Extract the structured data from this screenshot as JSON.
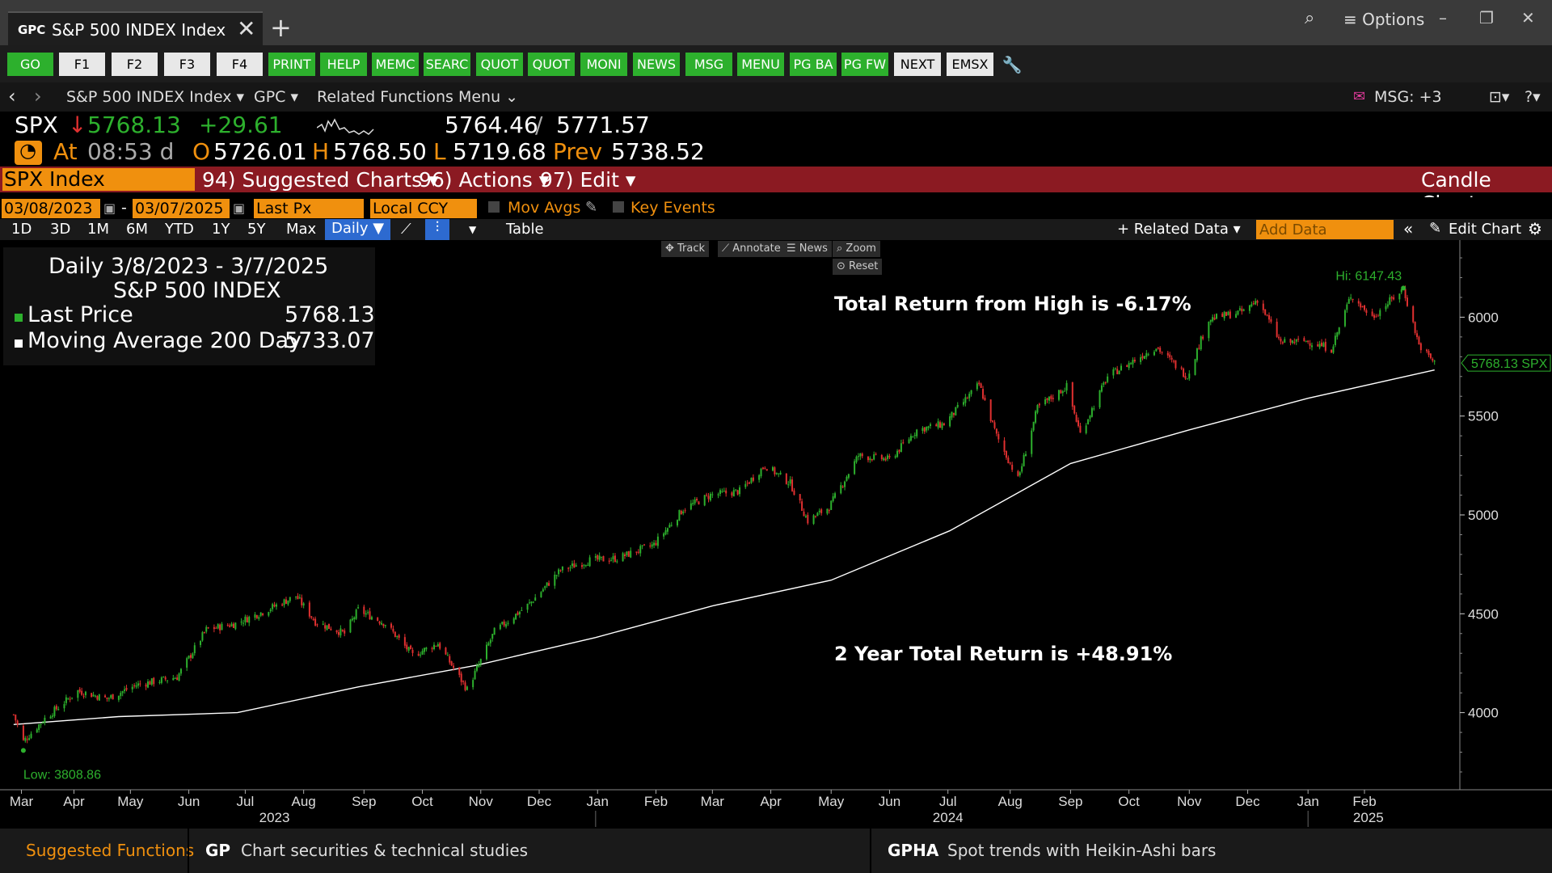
{
  "window": {
    "tab_code": "GPC",
    "tab_title": "S&P 500 INDEX Index",
    "options": "≡ Options"
  },
  "function_keys": [
    {
      "label": "GO",
      "style": "g"
    },
    {
      "label": "F1",
      "style": "w"
    },
    {
      "label": "F2",
      "style": "w"
    },
    {
      "label": "F3",
      "style": "w"
    },
    {
      "label": "F4",
      "style": "w"
    },
    {
      "label": "PRINT",
      "style": "g"
    },
    {
      "label": "HELP",
      "style": "g"
    },
    {
      "label": "MEMC",
      "style": "g"
    },
    {
      "label": "SEARC",
      "style": "g"
    },
    {
      "label": "QUOT",
      "style": "g"
    },
    {
      "label": "QUOT",
      "style": "g"
    },
    {
      "label": "MONI",
      "style": "g"
    },
    {
      "label": "NEWS",
      "style": "g"
    },
    {
      "label": "MSG",
      "style": "g"
    },
    {
      "label": "MENU",
      "style": "g"
    },
    {
      "label": "PG BA",
      "style": "g"
    },
    {
      "label": "PG FW",
      "style": "g"
    },
    {
      "label": "NEXT",
      "style": "w"
    },
    {
      "label": "EMSX",
      "style": "w"
    }
  ],
  "nav": {
    "security": "S&P 500 INDEX Index ▾",
    "function": "GPC ▾",
    "related": "Related Functions Menu ⌄",
    "msg": "MSG: +3"
  },
  "quote": {
    "ticker": "SPX",
    "last": "5768.13",
    "change": "+29.61",
    "bid": "5764.46",
    "ask": "5771.57",
    "at_label": "At",
    "time": "08:53 d",
    "open_label": "O",
    "open": "5726.01",
    "high_label": "H",
    "high": "5768.50",
    "low_label": "L",
    "low": "5719.68",
    "prev_label": "Prev",
    "prev": "5738.52"
  },
  "toolbar": {
    "security_box": "SPX Index",
    "suggested": "94) Suggested Charts ▾",
    "actions": "96) Actions ▾",
    "edit": "97) Edit ▾",
    "chart_type": "Candle Chart"
  },
  "controls": {
    "start_date": "03/08/2023",
    "end_date": "03/07/2025",
    "field": "Last Px",
    "currency": "Local CCY",
    "mov_avgs": "Mov Avgs",
    "key_events": "Key Events",
    "periods": [
      "1D",
      "3D",
      "1M",
      "6M",
      "YTD",
      "1Y",
      "5Y",
      "Max"
    ],
    "frequency": "Daily ▼",
    "table": "Table",
    "related_data": "+ Related Data ▾",
    "add_data_placeholder": "Add Data",
    "edit_chart": "Edit Chart"
  },
  "chart_tools": [
    "✥ Track",
    "⟋ Annotate",
    "☰ News",
    "⌕ Zoom",
    "⊙ Reset"
  ],
  "legend": {
    "period": "Daily 3/8/2023 - 3/7/2025",
    "name": "S&P 500 INDEX",
    "last_label": "Last Price",
    "last_value": "5768.13",
    "ma_label": "Moving Average 200 Day",
    "ma_value": "5733.07"
  },
  "annotations": {
    "from_high": "Total Return from High is -6.17%",
    "two_year": "2 Year Total Return is +48.91%"
  },
  "chart_data": {
    "type": "line",
    "series": [
      {
        "name": "Last Price",
        "color": "#2db02d",
        "x": [
          "2023-03-08",
          "2023-03-13",
          "2023-03-24",
          "2023-04-10",
          "2023-04-25",
          "2023-05-10",
          "2023-05-31",
          "2023-06-15",
          "2023-06-30",
          "2023-07-14",
          "2023-07-31",
          "2023-08-10",
          "2023-08-25",
          "2023-09-01",
          "2023-09-15",
          "2023-09-29",
          "2023-10-12",
          "2023-10-27",
          "2023-11-10",
          "2023-11-28",
          "2023-12-14",
          "2023-12-29",
          "2024-01-12",
          "2024-01-31",
          "2024-02-15",
          "2024-02-29",
          "2024-03-15",
          "2024-03-28",
          "2024-04-10",
          "2024-04-19",
          "2024-04-30",
          "2024-05-15",
          "2024-05-31",
          "2024-06-14",
          "2024-06-28",
          "2024-07-16",
          "2024-07-25",
          "2024-08-05",
          "2024-08-15",
          "2024-08-30",
          "2024-09-06",
          "2024-09-20",
          "2024-09-30",
          "2024-10-15",
          "2024-10-31",
          "2024-11-11",
          "2024-11-29",
          "2024-12-06",
          "2024-12-18",
          "2024-12-31",
          "2025-01-13",
          "2025-01-23",
          "2025-02-03",
          "2025-02-19",
          "2025-02-27",
          "2025-03-07"
        ],
        "y": [
          3990,
          3855,
          3970,
          4110,
          4070,
          4140,
          4180,
          4420,
          4450,
          4510,
          4590,
          4460,
          4400,
          4520,
          4450,
          4290,
          4350,
          4117,
          4410,
          4550,
          4720,
          4770,
          4780,
          4850,
          5030,
          5100,
          5120,
          5250,
          5160,
          4970,
          5040,
          5300,
          5280,
          5430,
          5460,
          5660,
          5400,
          5180,
          5540,
          5650,
          5410,
          5700,
          5760,
          5850,
          5700,
          5990,
          6030,
          6090,
          5870,
          5880,
          5840,
          6110,
          6000,
          6144,
          5860,
          5768
        ]
      },
      {
        "name": "Moving Average 200 Day",
        "color": "#ffffff",
        "x": [
          "2023-03-08",
          "2023-05-01",
          "2023-07-01",
          "2023-09-01",
          "2023-11-01",
          "2024-01-01",
          "2024-03-01",
          "2024-05-01",
          "2024-07-01",
          "2024-09-01",
          "2024-11-01",
          "2025-01-01",
          "2025-03-07"
        ],
        "y": [
          3940,
          3980,
          4000,
          4130,
          4240,
          4380,
          4540,
          4670,
          4920,
          5260,
          5430,
          5590,
          5733
        ]
      }
    ],
    "annotations": [
      {
        "text": "Hi: 6147.43",
        "x": "2025-02-19",
        "y": 6147.43
      },
      {
        "text": "Low: 3808.86",
        "x": "2023-03-13",
        "y": 3808.86
      }
    ],
    "last_tag": "5768.13 SPX",
    "y_ticks": [
      4000,
      4500,
      5000,
      5500,
      6000
    ],
    "ylim": [
      3610,
      6390
    ],
    "xlim": [
      "2023-03-01",
      "2025-03-20"
    ],
    "x_month_labels": [
      {
        "label": "Mar",
        "date": "2023-03-12"
      },
      {
        "label": "Apr",
        "date": "2023-04-08"
      },
      {
        "label": "May",
        "date": "2023-05-07"
      },
      {
        "label": "Jun",
        "date": "2023-06-06"
      },
      {
        "label": "Jul",
        "date": "2023-07-05"
      },
      {
        "label": "Aug",
        "date": "2023-08-04"
      },
      {
        "label": "Sep",
        "date": "2023-09-04"
      },
      {
        "label": "Oct",
        "date": "2023-10-04"
      },
      {
        "label": "Nov",
        "date": "2023-11-03"
      },
      {
        "label": "Dec",
        "date": "2023-12-03"
      },
      {
        "label": "Jan",
        "date": "2024-01-02"
      },
      {
        "label": "Feb",
        "date": "2024-02-01"
      },
      {
        "label": "Mar",
        "date": "2024-03-01"
      },
      {
        "label": "Apr",
        "date": "2024-03-31"
      },
      {
        "label": "May",
        "date": "2024-05-01"
      },
      {
        "label": "Jun",
        "date": "2024-05-31"
      },
      {
        "label": "Jul",
        "date": "2024-06-30"
      },
      {
        "label": "Aug",
        "date": "2024-08-01"
      },
      {
        "label": "Sep",
        "date": "2024-09-01"
      },
      {
        "label": "Oct",
        "date": "2024-10-01"
      },
      {
        "label": "Nov",
        "date": "2024-11-01"
      },
      {
        "label": "Dec",
        "date": "2024-12-01"
      },
      {
        "label": "Jan",
        "date": "2025-01-01"
      },
      {
        "label": "Feb",
        "date": "2025-01-30"
      }
    ],
    "x_year_labels": [
      {
        "label": "2023",
        "date": "2023-07-20"
      },
      {
        "label": "2024",
        "date": "2024-06-30"
      },
      {
        "label": "2025",
        "date": "2025-02-01"
      }
    ],
    "grid": false
  },
  "footer": {
    "suggested": "Suggested Functions",
    "f1_code": "GP",
    "f1_desc": "Chart securities & technical studies",
    "f2_code": "GPHA",
    "f2_desc": "Spot trends with Heikin-Ashi bars"
  },
  "colors": {
    "accent_orange": "#f0900e",
    "up_green": "#2db02d",
    "down_red": "#e03030",
    "toolbar_red": "#8b1a22"
  }
}
